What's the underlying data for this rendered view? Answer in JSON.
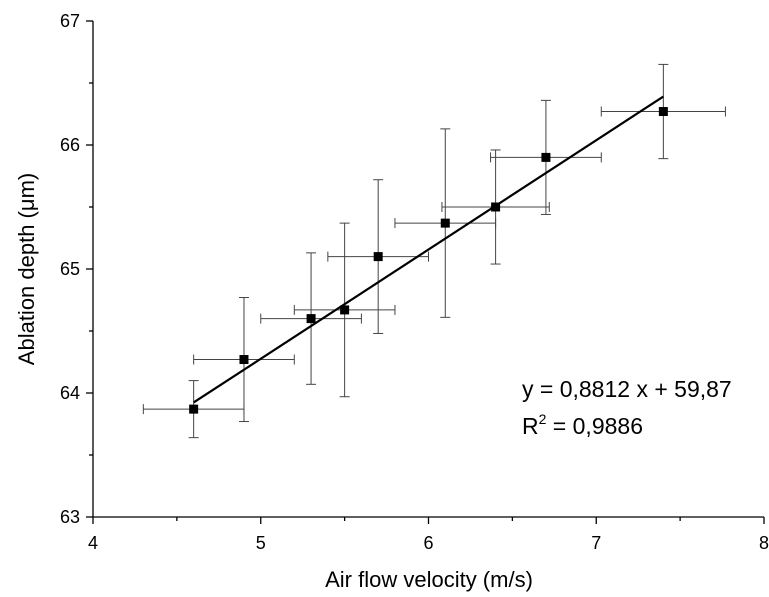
{
  "chart_data": {
    "type": "scatter",
    "title": "",
    "xlabel": "Air flow velocity (m/s)",
    "ylabel": "Ablation depth (μm)",
    "xlim": [
      4,
      8
    ],
    "ylim": [
      63,
      67
    ],
    "x_ticks": [
      "4",
      "5",
      "6",
      "7",
      "8"
    ],
    "y_ticks": [
      "63",
      "64",
      "65",
      "66",
      "67"
    ],
    "grid": false,
    "series": [
      {
        "marker": "square",
        "color": "#000000",
        "points": [
          {
            "x": 4.6,
            "y": 63.87,
            "xerr": 0.3,
            "yerr_minus": 0.23,
            "yerr_plus": 0.23
          },
          {
            "x": 4.9,
            "y": 64.27,
            "xerr": 0.3,
            "yerr_minus": 0.5,
            "yerr_plus": 0.5
          },
          {
            "x": 5.3,
            "y": 64.6,
            "xerr": 0.3,
            "yerr_minus": 0.53,
            "yerr_plus": 0.53
          },
          {
            "x": 5.5,
            "y": 64.67,
            "xerr": 0.3,
            "yerr_minus": 0.7,
            "yerr_plus": 0.7
          },
          {
            "x": 5.7,
            "y": 65.1,
            "xerr": 0.3,
            "yerr_minus": 0.62,
            "yerr_plus": 0.62
          },
          {
            "x": 6.1,
            "y": 65.37,
            "xerr": 0.3,
            "yerr_minus": 0.76,
            "yerr_plus": 0.76
          },
          {
            "x": 6.4,
            "y": 65.5,
            "xerr": 0.32,
            "yerr_minus": 0.46,
            "yerr_plus": 0.46
          },
          {
            "x": 6.7,
            "y": 65.9,
            "xerr": 0.33,
            "yerr_minus": 0.46,
            "yerr_plus": 0.46
          },
          {
            "x": 7.4,
            "y": 66.27,
            "xerr": 0.37,
            "yerr_minus": 0.38,
            "yerr_plus": 0.38
          }
        ]
      }
    ],
    "fit": {
      "slope": 0.8812,
      "intercept": 59.87,
      "x_range": [
        4.6,
        7.4
      ],
      "equation_label": "y = 0,8812 x + 59,87",
      "r2_prefix": "R",
      "r2_exponent": "2",
      "r2_value": " = 0,9886"
    }
  }
}
